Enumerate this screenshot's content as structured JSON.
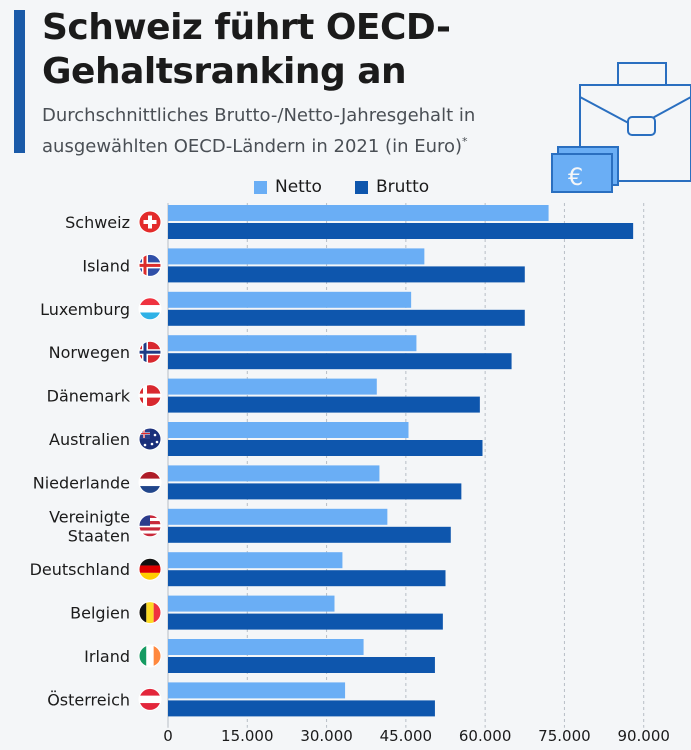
{
  "header": {
    "title": "Schweiz führt OECD-Gehaltsranking an",
    "subtitle": "Durchschnittliches Brutto-/Netto-Jahresgehalt in ausgewählten OECD-Ländern in 2021 (in Euro)",
    "subtitle_footnote_mark": "*"
  },
  "illustration": {
    "currency_symbol": "€"
  },
  "colors": {
    "netto": "#6aaef5",
    "brutto": "#0e56ad",
    "accent": "#1a5aa8",
    "grid": "#b8bec6"
  },
  "chart_data": {
    "type": "bar",
    "orientation": "horizontal",
    "title": "Schweiz führt OECD-Gehaltsranking an",
    "xlabel": "",
    "ylabel": "",
    "legend": [
      "Netto",
      "Brutto"
    ],
    "legend_placement": "top",
    "grid": true,
    "xlim": [
      0,
      98000
    ],
    "ticks": [
      0,
      15000,
      30000,
      45000,
      60000,
      75000,
      90000
    ],
    "tick_labels": [
      "0",
      "15.000",
      "30.000",
      "45.000",
      "60.000",
      "75.000",
      "90.000"
    ],
    "categories": [
      {
        "label": "Schweiz",
        "lines": [
          "Schweiz"
        ],
        "flag": "ch"
      },
      {
        "label": "Island",
        "lines": [
          "Island"
        ],
        "flag": "is"
      },
      {
        "label": "Luxemburg",
        "lines": [
          "Luxemburg"
        ],
        "flag": "lu"
      },
      {
        "label": "Norwegen",
        "lines": [
          "Norwegen"
        ],
        "flag": "no"
      },
      {
        "label": "Dänemark",
        "lines": [
          "Dänemark"
        ],
        "flag": "dk"
      },
      {
        "label": "Australien",
        "lines": [
          "Australien"
        ],
        "flag": "au"
      },
      {
        "label": "Niederlande",
        "lines": [
          "Niederlande"
        ],
        "flag": "nl"
      },
      {
        "label": "Vereinigte Staaten",
        "lines": [
          "Vereinigte",
          "Staaten"
        ],
        "flag": "us"
      },
      {
        "label": "Deutschland",
        "lines": [
          "Deutschland"
        ],
        "flag": "de"
      },
      {
        "label": "Belgien",
        "lines": [
          "Belgien"
        ],
        "flag": "be"
      },
      {
        "label": "Irland",
        "lines": [
          "Irland"
        ],
        "flag": "ie"
      },
      {
        "label": "Österreich",
        "lines": [
          "Österreich"
        ],
        "flag": "at"
      }
    ],
    "series": [
      {
        "name": "Netto",
        "values": [
          72000,
          48500,
          46000,
          47000,
          39500,
          45500,
          40000,
          41500,
          33000,
          31500,
          37000,
          33500
        ]
      },
      {
        "name": "Brutto",
        "values": [
          88000,
          67500,
          67500,
          65000,
          59000,
          59500,
          55500,
          53500,
          52500,
          52000,
          50500,
          50500
        ]
      }
    ]
  }
}
